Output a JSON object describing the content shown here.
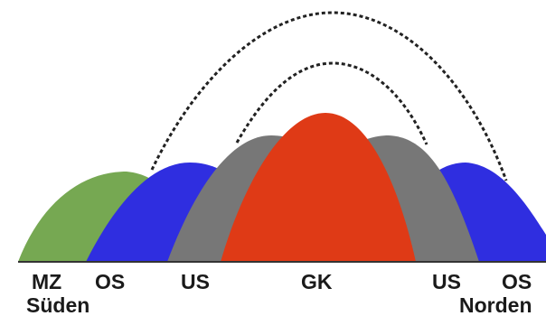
{
  "zones": [
    {
      "key": "mz",
      "label": "MZ",
      "color": "#76a852"
    },
    {
      "key": "os_south",
      "label": "OS",
      "color": "#2f2ee0"
    },
    {
      "key": "us_south",
      "label": "US",
      "color": "#777777"
    },
    {
      "key": "gk",
      "label": "GK",
      "color": "#df3a16"
    },
    {
      "key": "us_north",
      "label": "US",
      "color": "#777777"
    },
    {
      "key": "os_north",
      "label": "OS",
      "color": "#2f2ee0"
    }
  ],
  "directions": {
    "south": "Süden",
    "north": "Norden"
  },
  "colors": {
    "baseline": "#333333",
    "arc": "#222222",
    "text": "#1a1a1a"
  }
}
